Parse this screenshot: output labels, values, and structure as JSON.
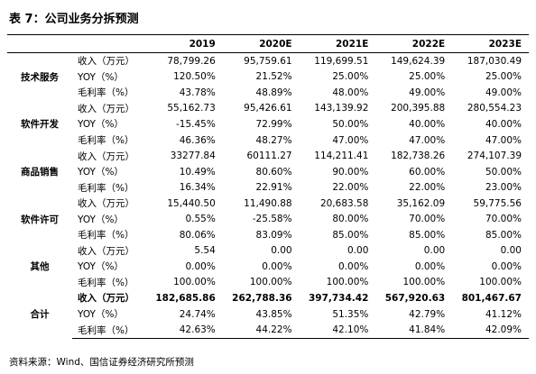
{
  "title": "表 7：公司业务分拆预测",
  "table": {
    "header": [
      "2019",
      "2020E",
      "2021E",
      "2022E",
      "2023E"
    ],
    "groups": [
      {
        "name": "技术服务",
        "rows": [
          {
            "label": "收入（万元）",
            "values": [
              "78,799.26",
              "95,759.61",
              "119,699.51",
              "149,624.39",
              "187,030.49"
            ]
          },
          {
            "label": "YOY（%）",
            "values": [
              "120.50%",
              "21.52%",
              "25.00%",
              "25.00%",
              "25.00%"
            ]
          },
          {
            "label": "毛利率（%）",
            "values": [
              "43.78%",
              "48.89%",
              "48.00%",
              "49.00%",
              "49.00%"
            ]
          }
        ]
      },
      {
        "name": "软件开发",
        "rows": [
          {
            "label": "收入（万元）",
            "values": [
              "55,162.73",
              "95,426.61",
              "143,139.92",
              "200,395.88",
              "280,554.23"
            ]
          },
          {
            "label": "YOY（%）",
            "values": [
              "-15.45%",
              "72.99%",
              "50.00%",
              "40.00%",
              "40.00%"
            ]
          },
          {
            "label": "毛利率（%）",
            "values": [
              "46.36%",
              "48.27%",
              "47.00%",
              "47.00%",
              "47.00%"
            ]
          }
        ]
      },
      {
        "name": "商品销售",
        "rows": [
          {
            "label": "收入（万元）",
            "values": [
              "33277.84",
              "60111.27",
              "114,211.41",
              "182,738.26",
              "274,107.39"
            ]
          },
          {
            "label": "YOY（%）",
            "values": [
              "10.49%",
              "80.60%",
              "90.00%",
              "60.00%",
              "50.00%"
            ]
          },
          {
            "label": "毛利率（%）",
            "values": [
              "16.34%",
              "22.91%",
              "22.00%",
              "22.00%",
              "23.00%"
            ]
          }
        ]
      },
      {
        "name": "软件许可",
        "rows": [
          {
            "label": "收入（万元）",
            "values": [
              "15,440.50",
              "11,490.88",
              "20,683.58",
              "35,162.09",
              "59,775.56"
            ]
          },
          {
            "label": "YOY（%）",
            "values": [
              "0.55%",
              "-25.58%",
              "80.00%",
              "70.00%",
              "70.00%"
            ]
          },
          {
            "label": "毛利率（%）",
            "values": [
              "80.06%",
              "83.09%",
              "85.00%",
              "85.00%",
              "85.00%"
            ]
          }
        ]
      },
      {
        "name": "其他",
        "rows": [
          {
            "label": "收入（万元）",
            "values": [
              "5.54",
              "0.00",
              "0.00",
              "0.00",
              "0.00"
            ]
          },
          {
            "label": "YOY（%）",
            "values": [
              "0.00%",
              "0.00%",
              "0.00%",
              "0.00%",
              "0.00%"
            ]
          },
          {
            "label": "毛利率（%）",
            "values": [
              "100.00%",
              "100.00%",
              "100.00%",
              "100.00%",
              "100.00%"
            ]
          }
        ]
      },
      {
        "name": "合计",
        "rows": [
          {
            "label": "收入（万元）",
            "values": [
              "182,685.86",
              "262,788.36",
              "397,734.42",
              "567,920.63",
              "801,467.67"
            ]
          },
          {
            "label": "YOY（%）",
            "values": [
              "24.74%",
              "43.85%",
              "51.35%",
              "42.79%",
              "41.12%"
            ]
          },
          {
            "label": "毛利率（%）",
            "values": [
              "42.63%",
              "44.22%",
              "42.10%",
              "41.84%",
              "42.09%"
            ]
          }
        ]
      }
    ]
  },
  "source": "资料来源：Wind、国信证券经济研究所预测"
}
